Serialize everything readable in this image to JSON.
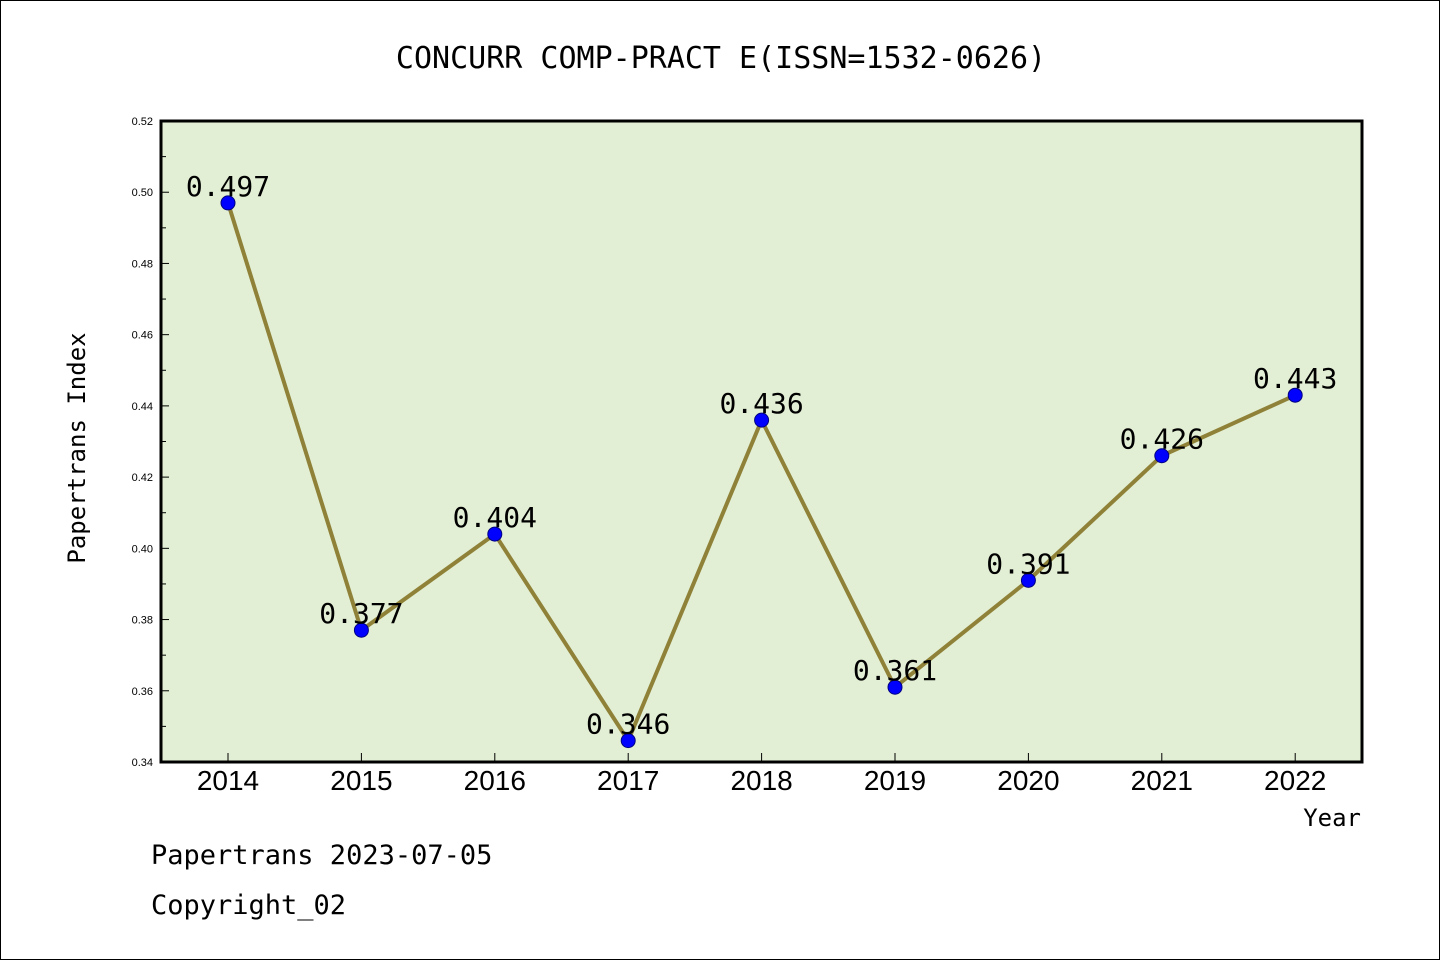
{
  "chart_data": {
    "type": "line",
    "title": "CONCURR COMP-PRACT E(ISSN=1532-0626)",
    "xlabel": "Year",
    "ylabel": "Papertrans Index",
    "categories": [
      "2014",
      "2015",
      "2016",
      "2017",
      "2018",
      "2019",
      "2020",
      "2021",
      "2022"
    ],
    "series": [
      {
        "values": [
          0.497,
          0.377,
          0.404,
          0.346,
          0.436,
          0.361,
          0.391,
          0.426,
          0.443
        ]
      }
    ],
    "data_labels": [
      "0.497",
      "0.377",
      "0.404",
      "0.346",
      "0.436",
      "0.361",
      "0.391",
      "0.426",
      "0.443"
    ],
    "ylim": [
      0.34,
      0.52
    ],
    "yticks": [
      "0.34",
      "0.36",
      "0.38",
      "0.40",
      "0.42",
      "0.44",
      "0.46",
      "0.48",
      "0.50",
      "0.52"
    ],
    "grid": false,
    "legend": "none",
    "colors": {
      "plot_background": "#e2efd4",
      "line": "#8f8238",
      "marker": "#0000ff",
      "marker_edge": "#000080"
    }
  },
  "footer": {
    "line1": "Papertrans 2023-07-05",
    "line2": "Copyright_02"
  }
}
